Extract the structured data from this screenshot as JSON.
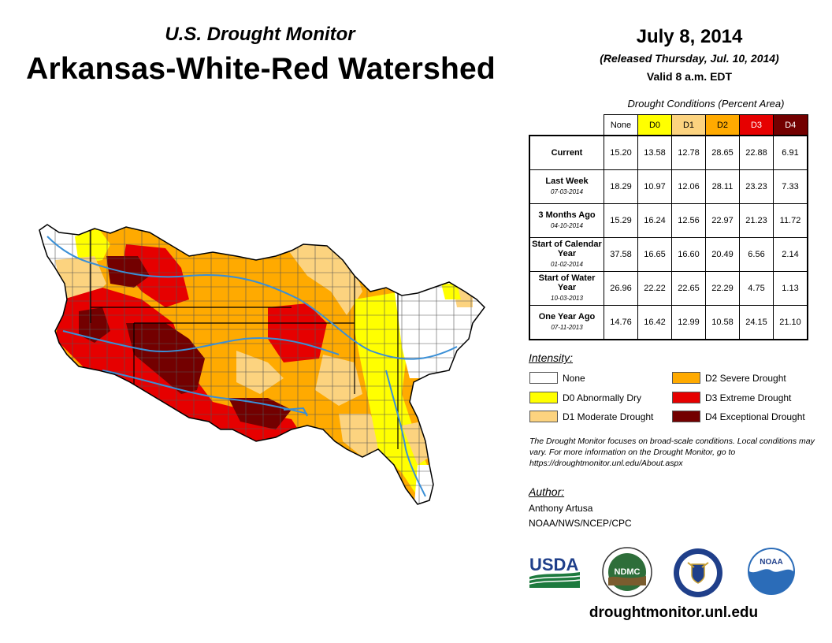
{
  "header": {
    "subtitle": "U.S. Drought Monitor",
    "title": "Arkansas-White-Red Watershed",
    "date": "July 8, 2014",
    "released": "(Released Thursday, Jul. 10, 2014)",
    "valid": "Valid 8 a.m. EDT"
  },
  "table": {
    "caption": "Drought Conditions (Percent Area)",
    "columns": [
      "None",
      "D0",
      "D1",
      "D2",
      "D3",
      "D4"
    ],
    "column_colors": [
      "#ffffff",
      "#ffff00",
      "#fcd37f",
      "#ffaa00",
      "#e60000",
      "#730000"
    ],
    "rows": [
      {
        "label": "Current",
        "date": "",
        "values": [
          "15.20",
          "13.58",
          "12.78",
          "28.65",
          "22.88",
          "6.91"
        ]
      },
      {
        "label": "Last Week",
        "date": "07-03-2014",
        "values": [
          "18.29",
          "10.97",
          "12.06",
          "28.11",
          "23.23",
          "7.33"
        ]
      },
      {
        "label": "3 Months Ago",
        "date": "04-10-2014",
        "values": [
          "15.29",
          "16.24",
          "12.56",
          "22.97",
          "21.23",
          "11.72"
        ]
      },
      {
        "label": "Start of Calendar Year",
        "date": "01-02-2014",
        "values": [
          "37.58",
          "16.65",
          "16.60",
          "20.49",
          "6.56",
          "2.14"
        ]
      },
      {
        "label": "Start of Water Year",
        "date": "10-03-2013",
        "values": [
          "26.96",
          "22.22",
          "22.65",
          "22.29",
          "4.75",
          "1.13"
        ]
      },
      {
        "label": "One Year Ago",
        "date": "07-11-2013",
        "values": [
          "14.76",
          "16.42",
          "12.99",
          "10.58",
          "24.15",
          "21.10"
        ]
      }
    ]
  },
  "legend": {
    "title": "Intensity:",
    "items": [
      {
        "label": "None",
        "color": "#ffffff"
      },
      {
        "label": "D0 Abnormally Dry",
        "color": "#ffff00"
      },
      {
        "label": "D1 Moderate Drought",
        "color": "#fcd37f"
      },
      {
        "label": "D2 Severe Drought",
        "color": "#ffaa00"
      },
      {
        "label": "D3 Extreme Drought",
        "color": "#e60000"
      },
      {
        "label": "D4 Exceptional Drought",
        "color": "#730000"
      }
    ]
  },
  "note": "The Drought Monitor focuses on broad-scale conditions. Local conditions may vary. For more information on the Drought Monitor, go to https://droughtmonitor.unl.edu/About.aspx",
  "author": {
    "title": "Author:",
    "name": "Anthony Artusa",
    "org": "NOAA/NWS/NCEP/CPC"
  },
  "logos": {
    "usda": "USDA",
    "ndmc": "NDMC",
    "noaa": "NOAA"
  },
  "website": "droughtmonitor.unl.edu"
}
